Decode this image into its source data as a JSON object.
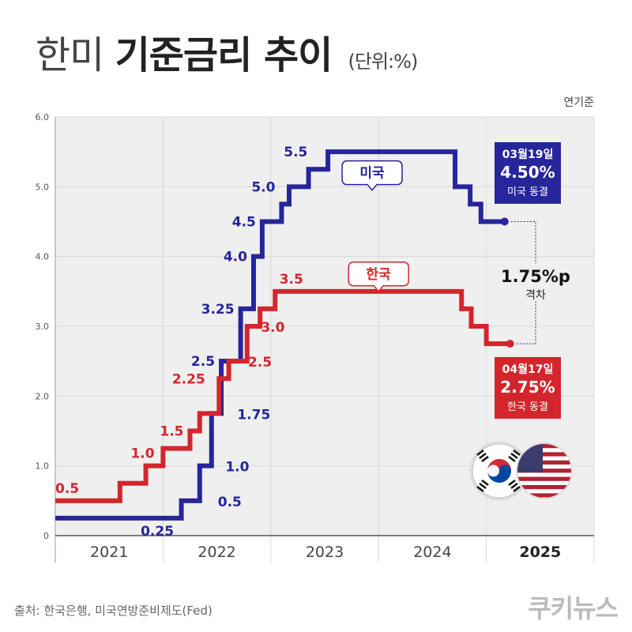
{
  "title": {
    "part1": "한미",
    "part2": "기준금리 추이",
    "unit": "(단위:%)"
  },
  "unit_note": "연기준",
  "source": "출처: 한국은행, 미국연방준비제도(Fed)",
  "brand": "쿠키뉴스",
  "colors": {
    "us": "#27259a",
    "kr": "#d3262c",
    "grid": "#d8d8d8",
    "bg": "#efefef"
  },
  "chart_data": {
    "type": "line",
    "step": true,
    "ylim": [
      0,
      6.0
    ],
    "y_ticks": [
      "0",
      "1.0",
      "2.0",
      "3.0",
      "4.0",
      "5.0",
      "6.0"
    ],
    "xlim": [
      2021.0,
      2026.0
    ],
    "year_labels": [
      {
        "year": 2021,
        "label": "2021",
        "bold": false
      },
      {
        "year": 2022,
        "label": "2022",
        "bold": false
      },
      {
        "year": 2023,
        "label": "2023",
        "bold": false
      },
      {
        "year": 2024,
        "label": "2024",
        "bold": false
      },
      {
        "year": 2025,
        "label": "2025",
        "bold": true
      }
    ],
    "grid": true,
    "series": [
      {
        "key": "us",
        "name": "미국",
        "points": [
          [
            2021.0,
            0.25
          ],
          [
            2022.17,
            0.5
          ],
          [
            2022.34,
            1.0
          ],
          [
            2022.45,
            1.75
          ],
          [
            2022.54,
            2.5
          ],
          [
            2022.72,
            3.25
          ],
          [
            2022.84,
            4.0
          ],
          [
            2022.92,
            4.5
          ],
          [
            2023.1,
            4.75
          ],
          [
            2023.17,
            5.0
          ],
          [
            2023.35,
            5.25
          ],
          [
            2023.53,
            5.5
          ],
          [
            2024.71,
            5.0
          ],
          [
            2024.85,
            4.75
          ],
          [
            2024.95,
            4.5
          ],
          [
            2025.17,
            4.5
          ]
        ],
        "labels": [
          {
            "text": "0.25",
            "x": 2022.1,
            "y": 0.25,
            "pos": "below"
          },
          {
            "text": "0.5",
            "x": 2022.45,
            "y": 0.5,
            "pos": "right"
          },
          {
            "text": "1.0",
            "x": 2022.52,
            "y": 1.0,
            "pos": "right"
          },
          {
            "text": "1.75",
            "x": 2022.63,
            "y": 1.75,
            "pos": "right"
          },
          {
            "text": "2.5",
            "x": 2022.54,
            "y": 2.5,
            "pos": "left"
          },
          {
            "text": "3.25",
            "x": 2022.72,
            "y": 3.25,
            "pos": "left"
          },
          {
            "text": "4.0",
            "x": 2022.84,
            "y": 4.0,
            "pos": "left"
          },
          {
            "text": "4.5",
            "x": 2022.92,
            "y": 4.5,
            "pos": "left"
          },
          {
            "text": "5.0",
            "x": 2023.1,
            "y": 5.0,
            "pos": "left"
          },
          {
            "text": "5.5",
            "x": 2023.4,
            "y": 5.5,
            "pos": "left"
          }
        ],
        "callout": {
          "date": "03월19일",
          "value": "4.50%",
          "note": "미국 동결"
        },
        "name_tag_at": [
          2023.94,
          5.2
        ]
      },
      {
        "key": "kr",
        "name": "한국",
        "points": [
          [
            2021.0,
            0.5
          ],
          [
            2021.6,
            0.75
          ],
          [
            2021.84,
            1.0
          ],
          [
            2022.0,
            1.25
          ],
          [
            2022.25,
            1.5
          ],
          [
            2022.34,
            1.75
          ],
          [
            2022.52,
            2.25
          ],
          [
            2022.61,
            2.5
          ],
          [
            2022.78,
            3.0
          ],
          [
            2022.9,
            3.25
          ],
          [
            2023.04,
            3.5
          ],
          [
            2024.77,
            3.25
          ],
          [
            2024.86,
            3.0
          ],
          [
            2025.0,
            2.75
          ],
          [
            2025.22,
            2.75
          ]
        ],
        "labels": [
          {
            "text": "0.5",
            "x": 2021.0,
            "y": 0.5,
            "pos": "above"
          },
          {
            "text": "1.0",
            "x": 2021.7,
            "y": 1.0,
            "pos": "above"
          },
          {
            "text": "1.5",
            "x": 2022.25,
            "y": 1.5,
            "pos": "left"
          },
          {
            "text": "2.25",
            "x": 2022.45,
            "y": 2.25,
            "pos": "left"
          },
          {
            "text": "2.5",
            "x": 2022.73,
            "y": 2.5,
            "pos": "right"
          },
          {
            "text": "3.0",
            "x": 2022.85,
            "y": 3.0,
            "pos": "right"
          },
          {
            "text": "3.5",
            "x": 2023.08,
            "y": 3.5,
            "pos": "above"
          }
        ],
        "callout": {
          "date": "04월17일",
          "value": "2.75%",
          "note": "한국 동결"
        },
        "name_tag_at": [
          2024.0,
          3.75
        ]
      }
    ],
    "gap_annotation": {
      "value": "1.75%p",
      "label": "격차"
    }
  }
}
